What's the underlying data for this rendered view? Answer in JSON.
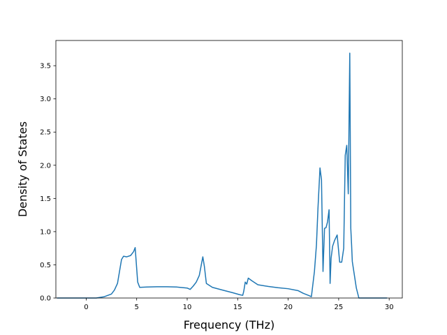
{
  "chart_data": {
    "type": "line",
    "title": "",
    "xlabel": "Frequency (THz)",
    "ylabel": "Density of States",
    "xlim": [
      -3.0,
      31.3
    ],
    "ylim": [
      0.0,
      3.88
    ],
    "xticks": [
      0,
      5,
      10,
      15,
      20,
      25,
      30
    ],
    "yticks": [
      0.0,
      0.5,
      1.0,
      1.5,
      2.0,
      2.5,
      3.0,
      3.5
    ],
    "grid": false,
    "legend": "none",
    "series": [
      {
        "color": "#1f77b4",
        "x": [
          -2.9,
          -1.0,
          0.0,
          1.0,
          1.8,
          2.5,
          2.8,
          3.1,
          3.3,
          3.5,
          3.7,
          4.0,
          4.4,
          4.7,
          4.85,
          4.95,
          5.1,
          5.3,
          6.0,
          7.0,
          8.0,
          9.0,
          10.0,
          10.3,
          10.6,
          10.9,
          11.2,
          11.4,
          11.55,
          11.7,
          11.9,
          12.5,
          13.5,
          14.5,
          15.2,
          15.5,
          15.6,
          15.75,
          15.9,
          16.05,
          16.4,
          17.0,
          18.0,
          19.0,
          20.0,
          21.0,
          21.5,
          22.0,
          22.3,
          22.6,
          22.8,
          22.95,
          23.15,
          23.3,
          23.45,
          23.6,
          23.75,
          23.9,
          24.05,
          24.15,
          24.25,
          24.4,
          24.6,
          24.85,
          25.1,
          25.3,
          25.5,
          25.65,
          25.8,
          25.95,
          26.1,
          26.2,
          26.28,
          26.35,
          26.5,
          26.75,
          27.0,
          27.3,
          28.0,
          29.0,
          29.8
        ],
        "y": [
          0.0,
          0.0,
          0.0,
          0.0,
          0.02,
          0.06,
          0.12,
          0.22,
          0.4,
          0.58,
          0.63,
          0.62,
          0.64,
          0.7,
          0.76,
          0.55,
          0.24,
          0.16,
          0.165,
          0.17,
          0.17,
          0.165,
          0.15,
          0.13,
          0.18,
          0.24,
          0.34,
          0.5,
          0.62,
          0.48,
          0.22,
          0.16,
          0.12,
          0.08,
          0.05,
          0.04,
          0.1,
          0.24,
          0.21,
          0.3,
          0.26,
          0.2,
          0.175,
          0.155,
          0.14,
          0.11,
          0.07,
          0.04,
          0.02,
          0.4,
          0.8,
          1.35,
          1.96,
          1.78,
          0.4,
          1.05,
          1.06,
          1.15,
          1.33,
          0.22,
          0.6,
          0.78,
          0.87,
          0.95,
          0.54,
          0.54,
          0.75,
          2.15,
          2.3,
          1.57,
          3.69,
          1.05,
          0.8,
          0.55,
          0.4,
          0.15,
          0.0,
          0.0,
          0.0,
          0.0,
          0.0
        ]
      }
    ]
  }
}
